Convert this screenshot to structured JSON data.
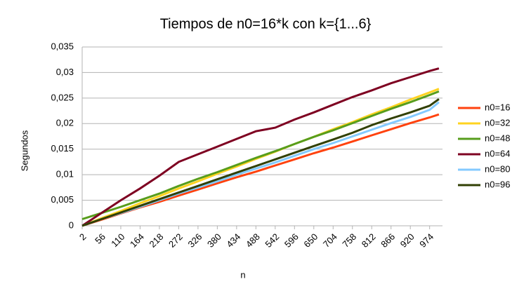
{
  "chart_data": {
    "type": "line",
    "title": "Tiempos de n0=16*k con k={1...6}",
    "x_label": "n",
    "y_label": "Segundos",
    "x": [
      2,
      56,
      110,
      164,
      218,
      272,
      326,
      380,
      434,
      488,
      542,
      596,
      650,
      704,
      758,
      812,
      866,
      920,
      974,
      1000
    ],
    "xlim": [
      2,
      1010
    ],
    "xticks": [
      2,
      56,
      110,
      164,
      218,
      272,
      326,
      380,
      434,
      488,
      542,
      596,
      650,
      704,
      758,
      812,
      866,
      920,
      974
    ],
    "ylim": [
      0,
      0.035
    ],
    "yticks": [
      0,
      {
        "value": 0.005,
        "label": "0,005"
      },
      {
        "value": 0.01,
        "label": "0,01"
      },
      {
        "value": 0.015,
        "label": "0,015"
      },
      {
        "value": 0.02,
        "label": "0,02"
      },
      {
        "value": 0.025,
        "label": "0,025"
      },
      {
        "value": 0.03,
        "label": "0,03"
      },
      {
        "value": 0.035,
        "label": "0,035"
      }
    ],
    "grid": true,
    "legend": "right",
    "series": [
      {
        "name": "n0=16",
        "color": "#ff420e",
        "values": [
          0,
          0.0012,
          0.0024,
          0.0036,
          0.0047,
          0.0059,
          0.0071,
          0.0083,
          0.0095,
          0.0106,
          0.0118,
          0.013,
          0.0142,
          0.0153,
          0.0165,
          0.0177,
          0.0189,
          0.0201,
          0.0212,
          0.0218
        ]
      },
      {
        "name": "n0=32",
        "color": "#ffd320",
        "values": [
          0,
          0.0015,
          0.0029,
          0.0044,
          0.0058,
          0.0073,
          0.0087,
          0.0102,
          0.0116,
          0.0131,
          0.0145,
          0.016,
          0.0174,
          0.0189,
          0.0203,
          0.0218,
          0.0232,
          0.0247,
          0.0261,
          0.0268
        ]
      },
      {
        "name": "n0=48",
        "color": "#579d1c",
        "values": [
          0.0013,
          0.0025,
          0.0037,
          0.005,
          0.0063,
          0.0078,
          0.0092,
          0.0105,
          0.0119,
          0.0133,
          0.0146,
          0.016,
          0.0174,
          0.0187,
          0.0201,
          0.0215,
          0.0229,
          0.0242,
          0.0256,
          0.0263
        ]
      },
      {
        "name": "n0=64",
        "color": "#7e0021",
        "values": [
          0,
          0.0025,
          0.005,
          0.0073,
          0.0098,
          0.0125,
          0.014,
          0.0155,
          0.017,
          0.0185,
          0.0192,
          0.0208,
          0.0222,
          0.0237,
          0.0252,
          0.0265,
          0.0279,
          0.0291,
          0.0303,
          0.0308
        ]
      },
      {
        "name": "n0=80",
        "color": "#83caff",
        "values": [
          0,
          0.0013,
          0.0025,
          0.0037,
          0.005,
          0.0063,
          0.0075,
          0.0087,
          0.01,
          0.0112,
          0.0124,
          0.0137,
          0.015,
          0.0162,
          0.0175,
          0.0188,
          0.0201,
          0.0213,
          0.0227,
          0.0242
        ]
      },
      {
        "name": "n0=96",
        "color": "#314004",
        "values": [
          0,
          0.0013,
          0.0026,
          0.0039,
          0.0052,
          0.0065,
          0.0078,
          0.0091,
          0.0104,
          0.0117,
          0.013,
          0.0143,
          0.0156,
          0.0169,
          0.0182,
          0.0197,
          0.021,
          0.0222,
          0.0235,
          0.0248
        ]
      }
    ]
  }
}
